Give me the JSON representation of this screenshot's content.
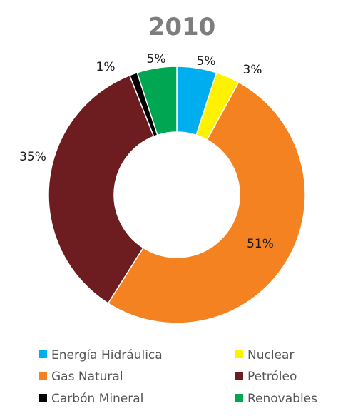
{
  "chart_data": {
    "type": "pie",
    "title": "2010",
    "donut": true,
    "slices": [
      {
        "name": "Energía Hidráulica",
        "value": 5,
        "label": "5%",
        "color": "#00aeef"
      },
      {
        "name": "Nuclear",
        "value": 3,
        "label": "3%",
        "color": "#fff200"
      },
      {
        "name": "Gas Natural",
        "value": 51,
        "label": "51%",
        "color": "#f58220"
      },
      {
        "name": "Petróleo",
        "value": 35,
        "label": "35%",
        "color": "#6d1c20"
      },
      {
        "name": "Carbón Mineral",
        "value": 1,
        "label": "1%",
        "color": "#000000"
      },
      {
        "name": "Renovables",
        "value": 5,
        "label": "5%",
        "color": "#00a651"
      }
    ],
    "legend_position": "bottom",
    "legend_order": [
      "Energía Hidráulica",
      "Nuclear",
      "Gas Natural",
      "Petróleo",
      "Carbón Mineral",
      "Renovables"
    ]
  }
}
